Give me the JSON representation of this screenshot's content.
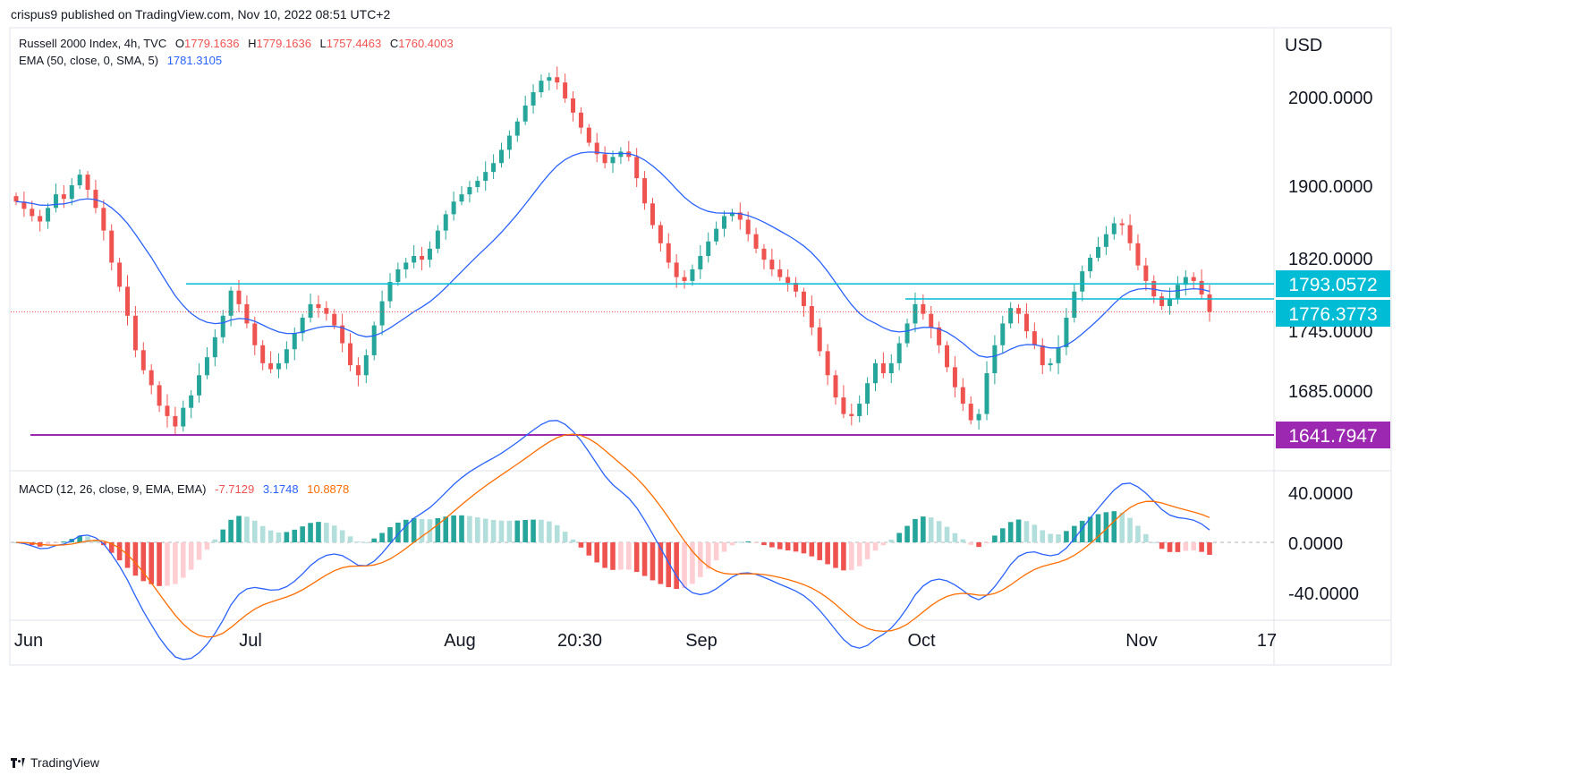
{
  "header": {
    "text": "crispus9 published on TradingView.com, Nov 10, 2022 08:51 UTC+2"
  },
  "legend_main": {
    "title": "Russell 2000 Index, 4h, TVC",
    "o_label": "O",
    "o_value": "1779.1636",
    "h_label": "H",
    "h_value": "1779.1636",
    "l_label": "L",
    "l_value": "1757.4463",
    "c_label": "C",
    "c_value": "1760.4003"
  },
  "legend_ema": {
    "label": "EMA (50, close, 0, SMA, 5)",
    "value": "1781.3105"
  },
  "legend_macd": {
    "label": "MACD (12, 26, close, 9, EMA, EMA)",
    "hist": "-7.7129",
    "macd": "3.1748",
    "signal": "10.8878"
  },
  "footer": {
    "brand": "TradingView"
  },
  "colors": {
    "up": "#26a69a",
    "down": "#ef5350",
    "ema": "#2962ff",
    "signal": "#ff6d00",
    "level": "#00bcd4",
    "support": "#9c27b0"
  },
  "chart_data": [
    {
      "type": "candlestick",
      "title": "Russell 2000 Index, 4h, TVC",
      "currency": "USD",
      "x_labels": [
        "Jun",
        "Jul",
        "Aug",
        "20:30",
        "Sep",
        "Oct",
        "Nov",
        "17"
      ],
      "y_ticks": [
        "2000.0000",
        "1900.0000",
        "1820.0000",
        "1745.0000",
        "1685.0000"
      ],
      "price_labels": [
        {
          "value": "1793.0572",
          "role": "resistance"
        },
        {
          "value": "1776.3773",
          "role": "current"
        },
        {
          "value": "1641.7947",
          "role": "support"
        }
      ],
      "close_series": [
        1882,
        1874,
        1866,
        1860,
        1875,
        1890,
        1885,
        1900,
        1912,
        1895,
        1875,
        1850,
        1815,
        1790,
        1760,
        1725,
        1705,
        1690,
        1670,
        1660,
        1650,
        1668,
        1680,
        1700,
        1718,
        1738,
        1760,
        1786,
        1772,
        1752,
        1730,
        1712,
        1706,
        1712,
        1726,
        1742,
        1758,
        1772,
        1768,
        1762,
        1750,
        1732,
        1710,
        1700,
        1720,
        1750,
        1775,
        1795,
        1808,
        1815,
        1822,
        1818,
        1830,
        1850,
        1868,
        1882,
        1890,
        1898,
        1905,
        1915,
        1925,
        1940,
        1956,
        1972,
        1990,
        2005,
        2018,
        2022,
        2016,
        1998,
        1982,
        1965,
        1948,
        1935,
        1925,
        1932,
        1938,
        1932,
        1908,
        1880,
        1856,
        1836,
        1815,
        1800,
        1796,
        1808,
        1822,
        1838,
        1852,
        1866,
        1870,
        1862,
        1846,
        1830,
        1818,
        1808,
        1800,
        1794,
        1785,
        1770,
        1748,
        1724,
        1700,
        1678,
        1662,
        1660,
        1672,
        1692,
        1712,
        1702,
        1712,
        1732,
        1752,
        1772,
        1762,
        1748,
        1730,
        1708,
        1688,
        1672,
        1656,
        1662,
        1702,
        1730,
        1752,
        1768,
        1762,
        1744,
        1730,
        1710,
        1712,
        1728,
        1758,
        1785,
        1806,
        1820,
        1832,
        1846,
        1858,
        1856,
        1836,
        1812,
        1796,
        1780,
        1770,
        1778,
        1792,
        1800,
        1796,
        1782,
        1764
      ],
      "ema_50": {
        "name": "EMA",
        "value": "1781.3105"
      }
    },
    {
      "type": "bar+line",
      "title": "MACD (12, 26, close, 9, EMA, EMA)",
      "y_ticks": [
        "40.0000",
        "0.0000",
        "-40.0000"
      ],
      "series": [
        {
          "name": "Histogram",
          "last": "-7.7129"
        },
        {
          "name": "MACD",
          "last": "3.1748"
        },
        {
          "name": "Signal",
          "last": "10.8878"
        }
      ]
    }
  ]
}
